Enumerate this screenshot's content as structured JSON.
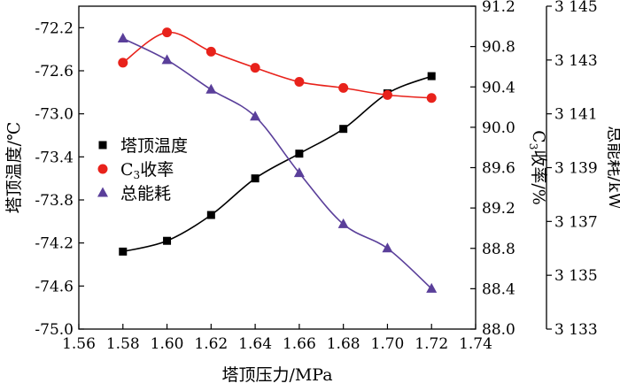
{
  "chart_data": {
    "type": "line",
    "x": [
      1.58,
      1.6,
      1.62,
      1.64,
      1.66,
      1.68,
      1.7,
      1.72
    ],
    "xlabel": "塔顶压力/MPa",
    "xlim": [
      1.56,
      1.74
    ],
    "xticks": [
      "1.56",
      "1.58",
      "1.60",
      "1.62",
      "1.64",
      "1.66",
      "1.68",
      "1.70",
      "1.72",
      "1.74"
    ],
    "axes": {
      "left": {
        "label": "塔顶温度/℃",
        "ylim": [
          -75.0,
          -72.0
        ],
        "ticks": [
          "-72.2",
          "-72.6",
          "-73.0",
          "-73.4",
          "-73.8",
          "-74.2",
          "-74.6",
          "-75.0"
        ]
      },
      "right1": {
        "label_prefix": "C",
        "label_sub": "3",
        "label_suffix": "收率/%",
        "ylim": [
          88.0,
          91.2
        ],
        "ticks": [
          "91.2",
          "90.8",
          "90.4",
          "90.0",
          "89.6",
          "89.2",
          "88.8",
          "88.4",
          "88.0"
        ]
      },
      "right2": {
        "label": "总能耗/kW",
        "ylim": [
          3133,
          3145
        ],
        "ticks": [
          "3 145",
          "3 143",
          "3 141",
          "3 139",
          "3 137",
          "3 135",
          "3 133"
        ]
      }
    },
    "series": [
      {
        "name": "塔顶温度",
        "axis": "left",
        "marker": "square",
        "color": "#000000",
        "values": [
          -74.28,
          -74.18,
          -73.94,
          -73.6,
          -73.37,
          -73.14,
          -72.81,
          -72.65
        ]
      },
      {
        "name_prefix": "C",
        "name_sub": "3",
        "name_suffix": "收率",
        "axis": "right1",
        "marker": "circle",
        "color": "#e8221b",
        "values": [
          90.64,
          90.94,
          90.75,
          90.59,
          90.45,
          90.39,
          90.32,
          90.29
        ]
      },
      {
        "name": "总能耗",
        "axis": "right2",
        "marker": "triangle",
        "color": "#5a3f9a",
        "values": [
          3143.8,
          3143.0,
          3141.9,
          3140.9,
          3138.8,
          3136.9,
          3136.0,
          3134.5
        ]
      }
    ],
    "legend_position": "upper-left",
    "grid": false
  }
}
